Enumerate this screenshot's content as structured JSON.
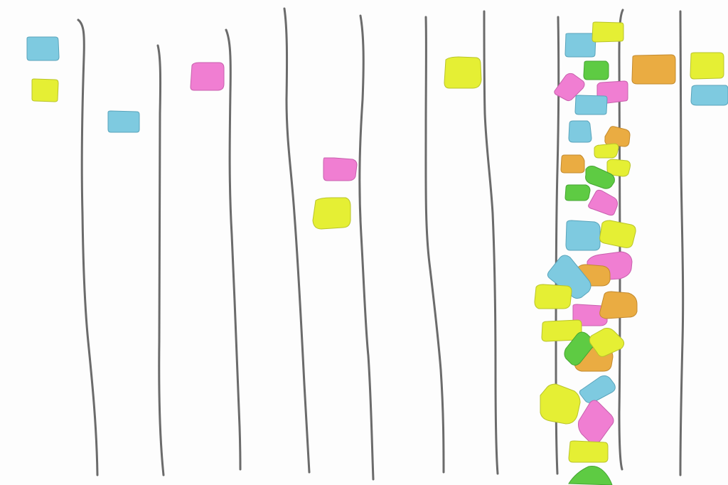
{
  "board": {
    "background": "#fdfdfd",
    "line_color": "#6b6b6b",
    "lane_line_count": 11
  },
  "note_colors": {
    "blue": {
      "fill": "#7ecae0",
      "stroke": "#5aa4bb"
    },
    "yellow": {
      "fill": "#e5ef34",
      "stroke": "#b9c42a"
    },
    "pink": {
      "fill": "#f07ed2",
      "stroke": "#c860ad"
    },
    "orange": {
      "fill": "#eaac42",
      "stroke": "#c38a2f"
    },
    "green": {
      "fill": "#5ecb43",
      "stroke": "#45a532"
    }
  },
  "notes": [
    {
      "id": "note-01",
      "color": "blue"
    },
    {
      "id": "note-02",
      "color": "yellow"
    },
    {
      "id": "note-03",
      "color": "blue"
    },
    {
      "id": "note-04",
      "color": "pink"
    },
    {
      "id": "note-05",
      "color": "yellow"
    },
    {
      "id": "note-06",
      "color": "pink"
    },
    {
      "id": "note-07",
      "color": "yellow"
    },
    {
      "id": "note-08",
      "color": "blue"
    },
    {
      "id": "note-09",
      "color": "yellow"
    },
    {
      "id": "note-10",
      "color": "green"
    },
    {
      "id": "note-11",
      "color": "pink"
    },
    {
      "id": "note-12",
      "color": "pink"
    },
    {
      "id": "note-13",
      "color": "blue"
    },
    {
      "id": "note-14",
      "color": "blue"
    },
    {
      "id": "note-15",
      "color": "orange"
    },
    {
      "id": "note-16",
      "color": "yellow"
    },
    {
      "id": "note-17",
      "color": "orange"
    },
    {
      "id": "note-18",
      "color": "yellow"
    },
    {
      "id": "note-19",
      "color": "green"
    },
    {
      "id": "note-20",
      "color": "green"
    },
    {
      "id": "note-21",
      "color": "pink"
    },
    {
      "id": "note-22",
      "color": "blue"
    },
    {
      "id": "note-23",
      "color": "yellow"
    },
    {
      "id": "note-24",
      "color": "pink"
    },
    {
      "id": "note-25",
      "color": "orange"
    },
    {
      "id": "note-26",
      "color": "blue"
    },
    {
      "id": "note-27",
      "color": "yellow"
    },
    {
      "id": "note-28",
      "color": "pink"
    },
    {
      "id": "note-29",
      "color": "orange"
    },
    {
      "id": "note-30",
      "color": "yellow"
    },
    {
      "id": "note-31",
      "color": "orange"
    },
    {
      "id": "note-32",
      "color": "green"
    },
    {
      "id": "note-33",
      "color": "yellow"
    },
    {
      "id": "note-34",
      "color": "blue"
    },
    {
      "id": "note-35",
      "color": "yellow"
    },
    {
      "id": "note-36",
      "color": "pink"
    },
    {
      "id": "note-37",
      "color": "yellow"
    },
    {
      "id": "note-38",
      "color": "green"
    },
    {
      "id": "note-39",
      "color": "orange"
    },
    {
      "id": "note-40",
      "color": "yellow"
    },
    {
      "id": "note-41",
      "color": "blue"
    }
  ]
}
